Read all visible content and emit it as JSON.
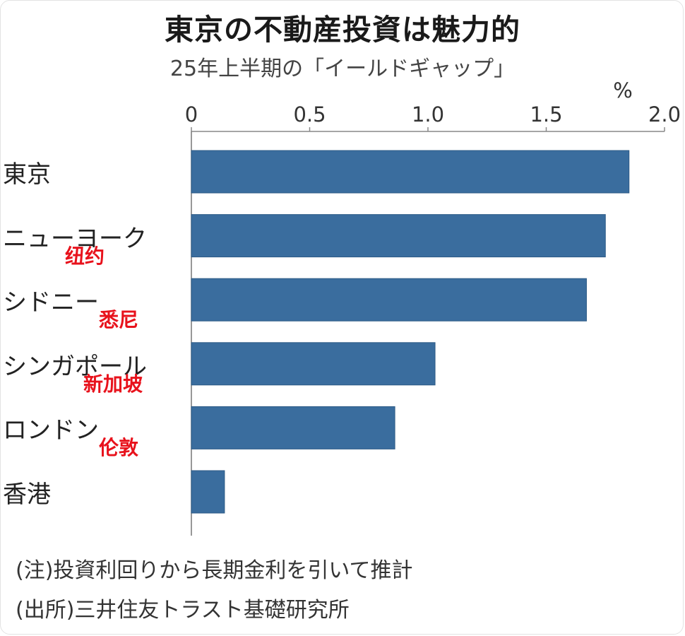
{
  "chart_data": {
    "type": "bar",
    "orientation": "horizontal",
    "title": "東京の不動産投資は魅力的",
    "subtitle": "25年上半期の「イールドギャップ」",
    "unit": "%",
    "xlim": [
      0,
      2.0
    ],
    "ticks": [
      "0",
      "0.5",
      "1.0",
      "1.5",
      "2.0"
    ],
    "tick_values": [
      0,
      0.5,
      1.0,
      1.5,
      2.0
    ],
    "categories": [
      "東京",
      "ニューヨーク",
      "シドニー",
      "シンガポール",
      "ロンドン",
      "香港"
    ],
    "annotations": [
      "",
      "纽约",
      "悉尼",
      "新加坡",
      "伦敦",
      ""
    ],
    "values": [
      1.85,
      1.75,
      1.67,
      1.03,
      0.86,
      0.14
    ],
    "bar_color": "#3a6d9e",
    "notes": [
      "(注)投資利回りから長期金利を引いて推計",
      "(出所)三井住友トラスト基礎研究所"
    ]
  }
}
